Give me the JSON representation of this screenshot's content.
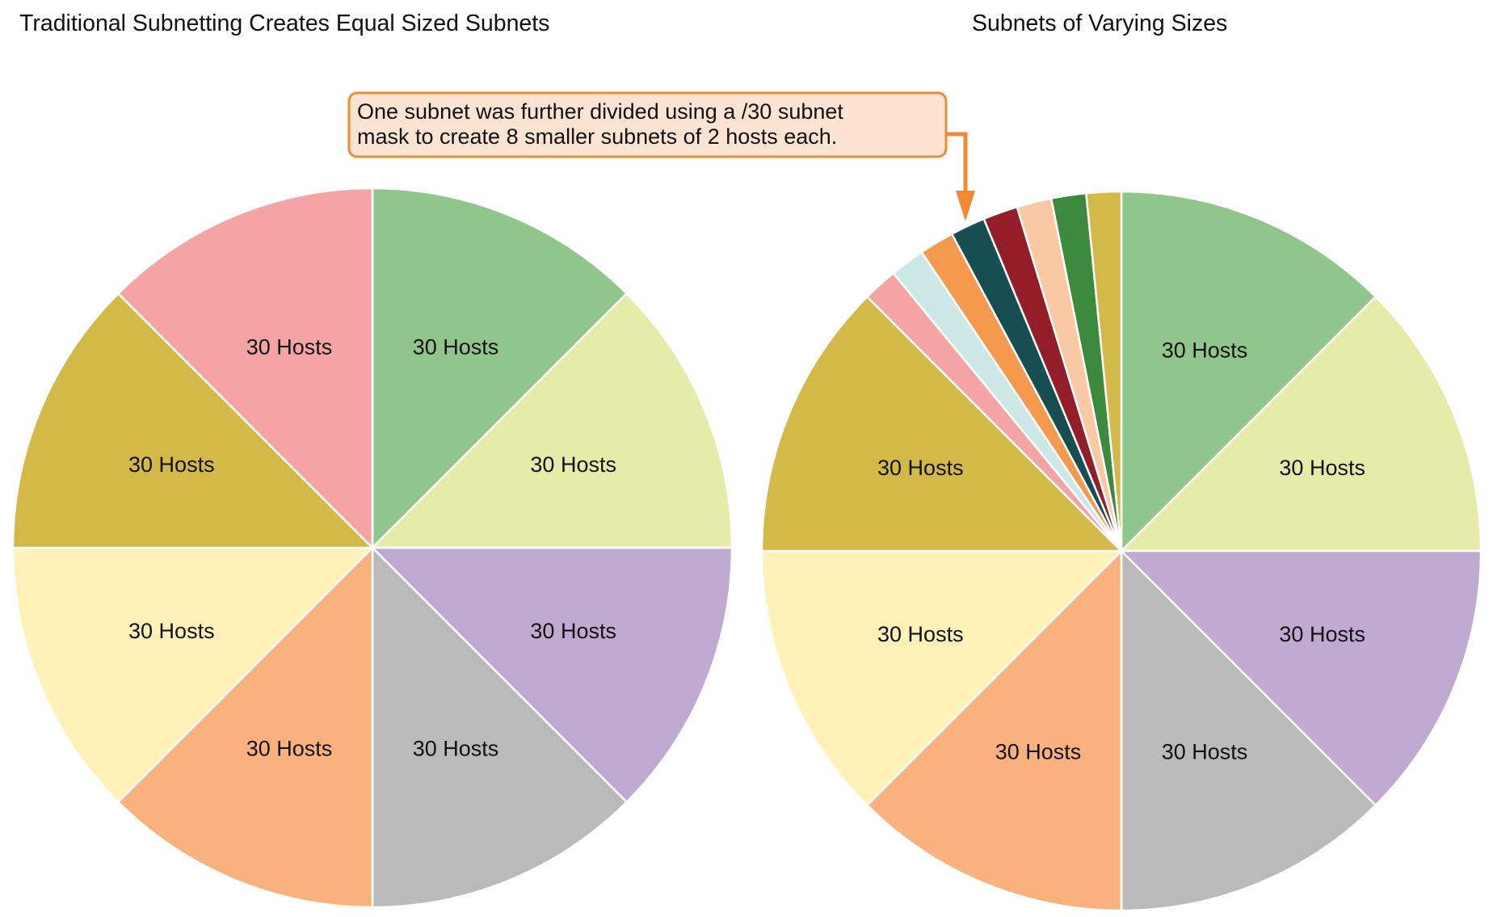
{
  "left_diagram": {
    "title": "Traditional Subnetting Creates Equal Sized Subnets",
    "slices": [
      {
        "label": "30 Hosts",
        "color": "#90C68B"
      },
      {
        "label": "30 Hosts",
        "color": "#E5EBA8"
      },
      {
        "label": "30 Hosts",
        "color": "#C1AAD1"
      },
      {
        "label": "30 Hosts",
        "color": "#BBBABA"
      },
      {
        "label": "30 Hosts",
        "color": "#F9B27D"
      },
      {
        "label": "30 Hosts",
        "color": "#FFF1B7"
      },
      {
        "label": "30 Hosts",
        "color": "#D3B947"
      },
      {
        "label": "30 Hosts",
        "color": "#F4A4A5"
      }
    ]
  },
  "right_diagram": {
    "title": "Subnets of Varying Sizes",
    "slices": [
      {
        "label": "30 Hosts",
        "color": "#90C68B"
      },
      {
        "label": "30 Hosts",
        "color": "#E5EBA8"
      },
      {
        "label": "30 Hosts",
        "color": "#C1AAD1"
      },
      {
        "label": "30 Hosts",
        "color": "#BBBABA"
      },
      {
        "label": "30 Hosts",
        "color": "#F9B27D"
      },
      {
        "label": "30 Hosts",
        "color": "#FFF1B7"
      },
      {
        "label": "30 Hosts",
        "color": "#D3B947"
      }
    ],
    "small_slices": [
      {
        "color": "#F4A4A5"
      },
      {
        "color": "#CDE7E7"
      },
      {
        "color": "#F5994F"
      },
      {
        "color": "#174E52"
      },
      {
        "color": "#931D29"
      },
      {
        "color": "#F9C8A4"
      },
      {
        "color": "#3C8A3D"
      },
      {
        "color": "#D3B947"
      }
    ],
    "callout": {
      "line1": "One subnet was further divided using a /30 subnet",
      "line2": "mask to create 8 smaller subnets of 2 hosts each.",
      "fill": "#FDE3D2",
      "border": "#F28A33",
      "arrow_color": "#F28A33"
    }
  }
}
